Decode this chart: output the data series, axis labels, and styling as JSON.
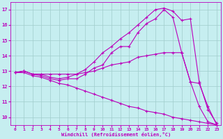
{
  "xlabel": "Windchill (Refroidissement éolien,°C)",
  "background_color": "#c6eef0",
  "grid_color": "#a0cccc",
  "line_color": "#bb00bb",
  "xlim": [
    -0.5,
    23.5
  ],
  "ylim": [
    9.5,
    17.5
  ],
  "xticks": [
    0,
    1,
    2,
    3,
    4,
    5,
    6,
    7,
    8,
    9,
    10,
    11,
    12,
    13,
    14,
    15,
    16,
    17,
    18,
    19,
    20,
    21,
    22,
    23
  ],
  "yticks": [
    10,
    11,
    12,
    13,
    14,
    15,
    16,
    17
  ],
  "lines": [
    {
      "x": [
        0,
        1,
        2,
        3,
        4,
        5,
        6,
        7,
        8,
        9,
        10,
        11,
        12,
        13,
        14,
        15,
        16,
        17,
        18,
        19,
        20,
        21,
        22,
        23
      ],
      "y": [
        12.9,
        13.0,
        12.8,
        12.8,
        12.6,
        12.5,
        12.6,
        12.8,
        13.1,
        13.6,
        14.2,
        14.6,
        15.1,
        15.5,
        16.0,
        16.5,
        17.0,
        17.1,
        16.9,
        16.3,
        16.4,
        12.3,
        10.5,
        9.6
      ]
    },
    {
      "x": [
        0,
        1,
        2,
        3,
        4,
        5,
        6,
        7,
        8,
        9,
        10,
        11,
        12,
        13,
        14,
        15,
        16,
        17,
        18,
        19,
        20,
        21,
        22,
        23
      ],
      "y": [
        12.9,
        13.0,
        12.8,
        12.7,
        12.5,
        12.4,
        12.5,
        12.5,
        12.8,
        13.2,
        13.4,
        14.2,
        14.6,
        14.6,
        15.5,
        16.1,
        16.4,
        17.0,
        16.5,
        14.2,
        12.3,
        10.7,
        9.7,
        9.5
      ]
    },
    {
      "x": [
        0,
        1,
        2,
        3,
        4,
        5,
        6,
        7,
        8,
        9,
        10,
        11,
        12,
        13,
        14,
        15,
        16,
        17,
        18,
        19,
        20,
        21,
        22,
        23
      ],
      "y": [
        12.9,
        13.0,
        12.8,
        12.8,
        12.8,
        12.8,
        12.8,
        12.8,
        12.9,
        13.0,
        13.2,
        13.4,
        13.5,
        13.6,
        13.9,
        14.0,
        14.1,
        14.2,
        14.2,
        14.2,
        12.3,
        12.2,
        10.7,
        9.5
      ]
    },
    {
      "x": [
        0,
        1,
        2,
        3,
        4,
        5,
        6,
        7,
        8,
        9,
        10,
        11,
        12,
        13,
        14,
        15,
        16,
        17,
        18,
        19,
        20,
        21,
        22,
        23
      ],
      "y": [
        12.9,
        12.9,
        12.7,
        12.6,
        12.4,
        12.2,
        12.1,
        11.9,
        11.7,
        11.5,
        11.3,
        11.1,
        10.9,
        10.7,
        10.6,
        10.4,
        10.3,
        10.2,
        10.0,
        9.9,
        9.8,
        9.7,
        9.6,
        9.5
      ]
    }
  ]
}
